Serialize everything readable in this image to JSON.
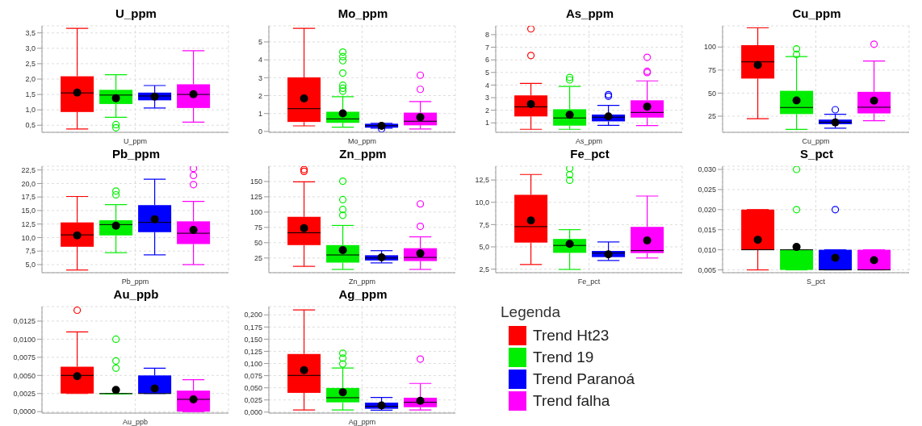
{
  "chart_data": [
    {
      "type": "box",
      "title": "U_ppm",
      "xlabel": "U_ppm",
      "categories": [
        null
      ],
      "ylim": [
        0.27,
        3.73
      ],
      "yticks": [
        {
          "value": 0.5,
          "label": "0,5"
        },
        {
          "value": 1,
          "label": "1,0"
        },
        {
          "value": 1.5,
          "label": "1,5"
        },
        {
          "value": 2,
          "label": "2,0"
        },
        {
          "value": 2.5,
          "label": "2,5"
        },
        {
          "value": 3,
          "label": "3,0"
        },
        {
          "value": 3.5,
          "label": "3,5"
        }
      ],
      "grid": true,
      "legend": false,
      "series": [
        {
          "color": "#ff0000",
          "boxes": [
            {
              "low": 0.38,
              "q1": 0.93,
              "median": 1.55,
              "q3": 2.09,
              "high": 3.65,
              "mean": 1.56
            }
          ]
        },
        {
          "color": "#00ee00",
          "boxes": [
            {
              "low": 0.76,
              "q1": 1.19,
              "median": 1.48,
              "q3": 1.65,
              "high": 2.14,
              "mean": 1.38,
              "outliers": [
                0.52,
                0.42
              ]
            }
          ]
        },
        {
          "color": "#0000ff",
          "boxes": [
            {
              "low": 1.06,
              "q1": 1.31,
              "median": 1.45,
              "q3": 1.56,
              "high": 1.79,
              "mean": 1.43
            }
          ]
        },
        {
          "color": "#ff00ff",
          "boxes": [
            {
              "low": 0.6,
              "q1": 1.06,
              "median": 1.5,
              "q3": 1.83,
              "high": 2.92,
              "mean": 1.51
            }
          ]
        }
      ]
    },
    {
      "type": "box",
      "title": "Mo_ppm",
      "xlabel": "Mo_ppm",
      "categories": [
        null
      ],
      "ylim": [
        -0.05,
        5.9
      ],
      "yticks": [
        0,
        1,
        2,
        3,
        4,
        5
      ],
      "grid": true,
      "legend": false,
      "series": [
        {
          "color": "#ff0000",
          "boxes": [
            {
              "low": 0.31,
              "q1": 0.53,
              "median": 1.27,
              "q3": 3.02,
              "high": 5.76,
              "mean": 1.84
            }
          ]
        },
        {
          "color": "#00ee00",
          "boxes": [
            {
              "low": 0.24,
              "q1": 0.48,
              "median": 0.7,
              "q3": 1.1,
              "high": 1.94,
              "mean": 1.01,
              "outliers": [
                4.43,
                4.18,
                3.95,
                3.26,
                2.58,
                2.41,
                2.25
              ]
            }
          ]
        },
        {
          "color": "#0000ff",
          "boxes": [
            {
              "low": 0.18,
              "q1": 0.21,
              "median": 0.32,
              "q3": 0.43,
              "high": 0.45,
              "mean": 0.31,
              "outliers": [
                0.14
              ]
            }
          ]
        },
        {
          "color": "#ff00ff",
          "boxes": [
            {
              "low": 0.14,
              "q1": 0.34,
              "median": 0.57,
              "q3": 1.05,
              "high": 1.67,
              "mean": 0.79,
              "outliers": [
                2.35,
                3.14
              ]
            }
          ]
        }
      ]
    },
    {
      "type": "box",
      "title": "As_ppm",
      "xlabel": "As_ppm",
      "categories": [
        null
      ],
      "ylim": [
        0.25,
        8.7
      ],
      "yticks": [
        1,
        2,
        3,
        4,
        5,
        6,
        7,
        8
      ],
      "grid": true,
      "legend": false,
      "series": [
        {
          "color": "#ff0000",
          "boxes": [
            {
              "low": 0.49,
              "q1": 1.51,
              "median": 2.27,
              "q3": 3.18,
              "high": 4.13,
              "mean": 2.49,
              "outliers": [
                6.34,
                8.46
              ]
            }
          ]
        },
        {
          "color": "#00ee00",
          "boxes": [
            {
              "low": 0.49,
              "q1": 0.78,
              "median": 1.39,
              "q3": 2.08,
              "high": 3.89,
              "mean": 1.64,
              "outliers": [
                4.6,
                4.41
              ]
            }
          ]
        },
        {
          "color": "#0000ff",
          "boxes": [
            {
              "low": 0.8,
              "q1": 1.12,
              "median": 1.45,
              "q3": 1.66,
              "high": 2.39,
              "mean": 1.51,
              "outliers": [
                3.24,
                3.11
              ]
            }
          ]
        },
        {
          "color": "#ff00ff",
          "boxes": [
            {
              "low": 0.78,
              "q1": 1.42,
              "median": 1.83,
              "q3": 2.79,
              "high": 4.33,
              "mean": 2.29,
              "outliers": [
                6.2,
                5.09,
                4.99
              ]
            }
          ]
        }
      ]
    },
    {
      "type": "box",
      "title": "Cu_ppm",
      "xlabel": "Cu_ppm",
      "categories": [
        null
      ],
      "ylim": [
        7.5,
        123
      ],
      "yticks": [
        25,
        50,
        75,
        100
      ],
      "grid": true,
      "legend": false,
      "series": [
        {
          "color": "#ff0000",
          "boxes": [
            {
              "low": 22.3,
              "q1": 65.8,
              "median": 83.9,
              "q3": 102,
              "high": 120.8,
              "mean": 80.6
            }
          ]
        },
        {
          "color": "#00ee00",
          "boxes": [
            {
              "low": 10.6,
              "q1": 27.3,
              "median": 34.4,
              "q3": 52.5,
              "high": 89.6,
              "mean": 42.1,
              "outliers": [
                98,
                92
              ]
            }
          ]
        },
        {
          "color": "#0000ff",
          "boxes": [
            {
              "low": 11.9,
              "q1": 16.3,
              "median": 18.5,
              "q3": 21.3,
              "high": 27,
              "mean": 18.3,
              "outliers": [
                32
              ]
            }
          ]
        },
        {
          "color": "#ff00ff",
          "boxes": [
            {
              "low": 20,
              "q1": 28,
              "median": 34.7,
              "q3": 51.4,
              "high": 84.9,
              "mean": 41.8,
              "outliers": [
                103
              ]
            }
          ]
        }
      ]
    },
    {
      "type": "box",
      "title": "Pb_ppm",
      "xlabel": "Pb_ppm",
      "categories": [
        null
      ],
      "ylim": [
        3.5,
        23.2
      ],
      "yticks": [
        {
          "value": 5,
          "label": "5,0"
        },
        {
          "value": 7.5,
          "label": "7,5"
        },
        {
          "value": 10,
          "label": "10,0"
        },
        {
          "value": 12.5,
          "label": "12,5"
        },
        {
          "value": 15,
          "label": "15,0"
        },
        {
          "value": 17.5,
          "label": "17,5"
        },
        {
          "value": 20,
          "label": "20,0"
        },
        {
          "value": 22.5,
          "label": "22,5"
        }
      ],
      "grid": true,
      "legend": false,
      "series": [
        {
          "color": "#ff0000",
          "boxes": [
            {
              "low": 4.0,
              "q1": 8.3,
              "median": 10.5,
              "q3": 12.8,
              "high": 17.6,
              "mean": 10.4
            }
          ]
        },
        {
          "color": "#00ee00",
          "boxes": [
            {
              "low": 7.2,
              "q1": 10.4,
              "median": 12.4,
              "q3": 13.2,
              "high": 16.1,
              "mean": 12.2,
              "outliers": [
                18.6,
                17.9
              ]
            }
          ]
        },
        {
          "color": "#0000ff",
          "boxes": [
            {
              "low": 6.8,
              "q1": 11,
              "median": 12.8,
              "q3": 16,
              "high": 20.8,
              "mean": 13.4
            }
          ]
        },
        {
          "color": "#ff00ff",
          "boxes": [
            {
              "low": 5,
              "q1": 8.8,
              "median": 10.8,
              "q3": 13,
              "high": 16.7,
              "mean": 11.4,
              "outliers": [
                22.8,
                21.5,
                19.8
              ]
            }
          ]
        }
      ]
    },
    {
      "type": "box",
      "title": "Zn_ppm",
      "xlabel": "Zn_ppm",
      "categories": [
        null
      ],
      "ylim": [
        1,
        175
      ],
      "yticks": [
        25,
        50,
        75,
        100,
        125,
        150
      ],
      "grid": true,
      "legend": false,
      "series": [
        {
          "color": "#ff0000",
          "boxes": [
            {
              "low": 11.4,
              "q1": 46.1,
              "median": 66.2,
              "q3": 92.3,
              "high": 149.5,
              "mean": 73.7,
              "outliers": [
                169.6,
                166.6
              ]
            }
          ]
        },
        {
          "color": "#00ee00",
          "boxes": [
            {
              "low": 6.4,
              "q1": 17.5,
              "median": 30,
              "q3": 46.1,
              "high": 78.2,
              "mean": 38,
              "outliers": [
                150.5,
                120.4,
                104.3,
                94.8
              ]
            }
          ]
        },
        {
          "color": "#0000ff",
          "boxes": [
            {
              "low": 17,
              "q1": 21,
              "median": 25,
              "q3": 29.5,
              "high": 37,
              "mean": 26
            }
          ]
        },
        {
          "color": "#ff00ff",
          "boxes": [
            {
              "low": 6.4,
              "q1": 20,
              "median": 26,
              "q3": 41,
              "high": 59.6,
              "mean": 32.5,
              "outliers": [
                76.7,
                113.4
              ]
            }
          ]
        }
      ]
    },
    {
      "type": "box",
      "title": "Fe_pct",
      "xlabel": "Fe_pct",
      "categories": [
        null
      ],
      "ylim": [
        2.1,
        14.05
      ],
      "yticks": [
        {
          "value": 2.5,
          "label": "2,5"
        },
        {
          "value": 5,
          "label": "5,0"
        },
        {
          "value": 7.5,
          "label": "7,5"
        },
        {
          "value": 10,
          "label": "10,0"
        },
        {
          "value": 12.5,
          "label": "12,5"
        }
      ],
      "grid": true,
      "legend": false,
      "series": [
        {
          "color": "#ff0000",
          "boxes": [
            {
              "low": 3.02,
              "q1": 5.48,
              "median": 7.27,
              "q3": 10.84,
              "high": 13.12,
              "mean": 7.96
            }
          ]
        },
        {
          "color": "#00ee00",
          "boxes": [
            {
              "low": 2.47,
              "q1": 4.33,
              "median": 5.16,
              "q3": 5.89,
              "high": 6.93,
              "mean": 5.34,
              "outliers": [
                13.8,
                13.09,
                12.47
              ]
            }
          ]
        },
        {
          "color": "#0000ff",
          "boxes": [
            {
              "low": 3.47,
              "q1": 3.85,
              "median": 4.3,
              "q3": 4.54,
              "high": 5.55,
              "mean": 4.16
            }
          ]
        },
        {
          "color": "#ff00ff",
          "boxes": [
            {
              "low": 3.75,
              "q1": 4.3,
              "median": 4.58,
              "q3": 7.24,
              "high": 10.7,
              "mean": 5.72
            }
          ]
        }
      ]
    },
    {
      "type": "box",
      "title": "S_pct",
      "xlabel": "S_pct",
      "categories": [
        null
      ],
      "ylim": [
        0.0043,
        0.0308
      ],
      "yticks": [
        {
          "value": 0.005,
          "label": "0,005"
        },
        {
          "value": 0.01,
          "label": "0,010"
        },
        {
          "value": 0.015,
          "label": "0,015"
        },
        {
          "value": 0.02,
          "label": "0,020"
        },
        {
          "value": 0.025,
          "label": "0,025"
        },
        {
          "value": 0.03,
          "label": "0,030"
        }
      ],
      "grid": true,
      "legend": false,
      "series": [
        {
          "color": "#ff0000",
          "boxes": [
            {
              "low": 0.005,
              "q1": 0.01,
              "median": 0.01,
              "q3": 0.02,
              "high": 0.02,
              "mean": 0.0125
            }
          ]
        },
        {
          "color": "#00ee00",
          "boxes": [
            {
              "low": 0.005,
              "q1": 0.005,
              "median": 0.01,
              "q3": 0.01,
              "high": 0.01,
              "mean": 0.0107,
              "outliers": [
                0.02,
                0.03
              ]
            }
          ]
        },
        {
          "color": "#0000ff",
          "boxes": [
            {
              "low": 0.005,
              "q1": 0.005,
              "median": 0.005,
              "q3": 0.01,
              "high": 0.01,
              "mean": 0.008,
              "outliers": [
                0.02
              ]
            }
          ]
        },
        {
          "color": "#ff00ff",
          "boxes": [
            {
              "low": 0.005,
              "q1": 0.005,
              "median": 0.005,
              "q3": 0.01,
              "high": 0.01,
              "mean": 0.0074
            }
          ]
        }
      ]
    },
    {
      "type": "box",
      "title": "Au_ppb",
      "xlabel": "Au_ppb",
      "categories": [
        null
      ],
      "ylim": [
        -0.0002,
        0.0145
      ],
      "yticks": [
        {
          "value": 0,
          "label": "0,0000"
        },
        {
          "value": 0.0025,
          "label": "0,0025"
        },
        {
          "value": 0.005,
          "label": "0,0050"
        },
        {
          "value": 0.0075,
          "label": "0,0075"
        },
        {
          "value": 0.01,
          "label": "0,0100"
        },
        {
          "value": 0.0125,
          "label": "0,0125"
        }
      ],
      "grid": true,
      "legend": false,
      "series": [
        {
          "color": "#ff0000",
          "boxes": [
            {
              "low": 0.0025,
              "q1": 0.0025,
              "median": 0.005,
              "q3": 0.0062,
              "high": 0.011,
              "mean": 0.0049,
              "outliers": [
                0.014
              ]
            }
          ]
        },
        {
          "color": "#00ee00",
          "boxes": [
            {
              "low": 0.0025,
              "q1": 0.0025,
              "median": 0.0025,
              "q3": 0.0025,
              "high": 0.0025,
              "mean": 0.003,
              "outliers": [
                0.01,
                0.007,
                0.006
              ]
            }
          ]
        },
        {
          "color": "#0000ff",
          "boxes": [
            {
              "low": 0.0025,
              "q1": 0.0025,
              "median": 0.0025,
              "q3": 0.005,
              "high": 0.006,
              "mean": 0.0032
            }
          ]
        },
        {
          "color": "#ff00ff",
          "boxes": [
            {
              "low": 0,
              "q1": 0,
              "median": 0.0017,
              "q3": 0.0029,
              "high": 0.0044,
              "mean": 0.0017
            }
          ]
        }
      ]
    },
    {
      "type": "box",
      "title": "Ag_ppm",
      "xlabel": "Ag_ppm",
      "categories": [
        null
      ],
      "ylim": [
        -0.002,
        0.217
      ],
      "yticks": [
        {
          "value": 0,
          "label": "0,000"
        },
        {
          "value": 0.025,
          "label": "0,025"
        },
        {
          "value": 0.05,
          "label": "0,050"
        },
        {
          "value": 0.075,
          "label": "0,075"
        },
        {
          "value": 0.1,
          "label": "0,100"
        },
        {
          "value": 0.125,
          "label": "0,125"
        },
        {
          "value": 0.15,
          "label": "0,150"
        },
        {
          "value": 0.175,
          "label": "0,175"
        },
        {
          "value": 0.2,
          "label": "0,200"
        }
      ],
      "grid": true,
      "legend": "right",
      "legend_title": "Legenda",
      "series": [
        {
          "name": "Trend Ht23",
          "color": "#ff0000",
          "boxes": [
            {
              "low": 0.0044,
              "q1": 0.0396,
              "median": 0.0755,
              "q3": 0.1195,
              "high": 0.21,
              "mean": 0.0862
            }
          ]
        },
        {
          "name": "Trend 19",
          "color": "#00ee00",
          "boxes": [
            {
              "low": 0.0044,
              "q1": 0.0201,
              "median": 0.0296,
              "q3": 0.0497,
              "high": 0.0906,
              "mean": 0.0409,
              "outliers": [
                0.121,
                0.111,
                0.099
              ]
            }
          ]
        },
        {
          "name": "Trend Paranoá",
          "color": "#0000ff",
          "boxes": [
            {
              "low": 0.004,
              "q1": 0.0069,
              "median": 0.012,
              "q3": 0.0195,
              "high": 0.03,
              "mean": 0.0138
            }
          ]
        },
        {
          "name": "Trend falha",
          "color": "#ff00ff",
          "boxes": [
            {
              "low": 0.0044,
              "q1": 0.0101,
              "median": 0.0201,
              "q3": 0.0296,
              "high": 0.059,
              "mean": 0.0233,
              "outliers": [
                0.109
              ]
            }
          ]
        }
      ]
    }
  ]
}
